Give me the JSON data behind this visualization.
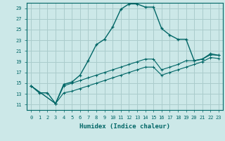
{
  "xlabel": "Humidex (Indice chaleur)",
  "background_color": "#cce8e8",
  "grid_color": "#aacccc",
  "line_color": "#006666",
  "xlim": [
    -0.5,
    23.5
  ],
  "ylim": [
    10.0,
    30.0
  ],
  "yticks": [
    11,
    13,
    15,
    17,
    19,
    21,
    23,
    25,
    27,
    29
  ],
  "xticks": [
    0,
    1,
    2,
    3,
    4,
    5,
    6,
    7,
    8,
    9,
    10,
    11,
    12,
    13,
    14,
    15,
    16,
    17,
    18,
    19,
    20,
    21,
    22,
    23
  ],
  "curve1_x": [
    0,
    1,
    2,
    3,
    4,
    5,
    6,
    7,
    8,
    9,
    10,
    11,
    12,
    13,
    14,
    15,
    16,
    17,
    18,
    19,
    20,
    21,
    22,
    23
  ],
  "curve1_y": [
    14.5,
    13.2,
    13.2,
    11.2,
    14.8,
    15.2,
    16.5,
    19.2,
    22.2,
    23.2,
    25.5,
    28.8,
    29.8,
    29.8,
    29.2,
    29.2,
    25.2,
    24.0,
    23.2,
    23.2,
    19.2,
    19.5,
    20.5,
    20.2
  ],
  "curve2_x": [
    0,
    3,
    4,
    5,
    6,
    7,
    8,
    9,
    10,
    11,
    12,
    13,
    14,
    15,
    16,
    17,
    18,
    19,
    20,
    21,
    22,
    23
  ],
  "curve2_y": [
    14.5,
    11.2,
    14.5,
    15.0,
    15.5,
    16.0,
    16.5,
    17.0,
    17.5,
    18.0,
    18.5,
    19.0,
    19.5,
    19.5,
    17.5,
    18.0,
    18.5,
    19.2,
    19.2,
    19.5,
    20.3,
    20.2
  ],
  "curve3_x": [
    0,
    3,
    4,
    5,
    6,
    7,
    8,
    9,
    10,
    11,
    12,
    13,
    14,
    15,
    16,
    17,
    18,
    19,
    20,
    21,
    22,
    23
  ],
  "curve3_y": [
    14.5,
    11.2,
    13.2,
    13.5,
    14.0,
    14.5,
    15.0,
    15.5,
    16.0,
    16.5,
    17.0,
    17.5,
    18.0,
    18.0,
    16.5,
    17.0,
    17.5,
    18.0,
    18.5,
    19.0,
    19.8,
    19.6
  ]
}
